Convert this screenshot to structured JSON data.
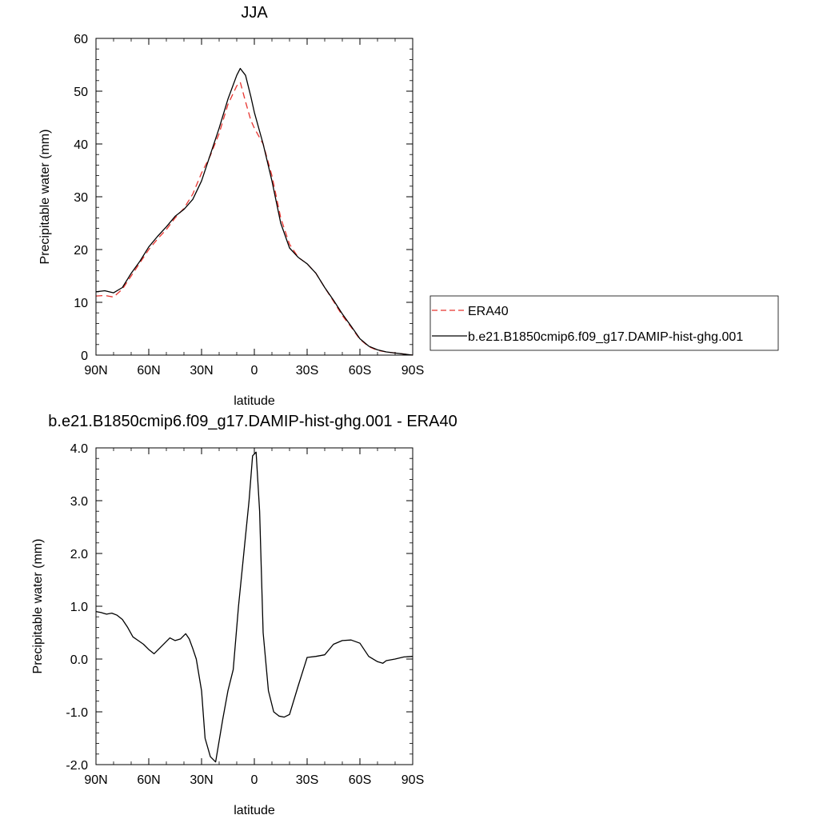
{
  "chart_data": [
    {
      "type": "line",
      "title": "JJA",
      "xlabel": "latitude",
      "ylabel": "Precipitable water (mm)",
      "x_ticklabels": [
        "90N",
        "60N",
        "30N",
        "0",
        "30S",
        "60S",
        "90S"
      ],
      "x_tickvalues": [
        90,
        60,
        30,
        0,
        -30,
        -60,
        -90
      ],
      "xlim": [
        90,
        -90
      ],
      "ylim": [
        0,
        60
      ],
      "y_ticks": [
        0,
        10,
        20,
        30,
        40,
        50,
        60
      ],
      "y_ticklabels": [
        "0",
        "10",
        "20",
        "30",
        "40",
        "50",
        "60"
      ],
      "grid": false,
      "legend_position": "right",
      "x": [
        90,
        85,
        80,
        75,
        70,
        65,
        60,
        55,
        50,
        45,
        40,
        35,
        30,
        25,
        20,
        15,
        10,
        8,
        5,
        2,
        0,
        -5,
        -10,
        -15,
        -20,
        -25,
        -30,
        -35,
        -40,
        -45,
        -50,
        -55,
        -60,
        -65,
        -70,
        -75,
        -80,
        -85,
        -90
      ],
      "series": [
        {
          "name": "ERA40",
          "color": "#e8342f",
          "dash": "dashed",
          "values": [
            11.2,
            11.3,
            11.0,
            12.5,
            15.0,
            17.5,
            20.0,
            22.0,
            23.8,
            26.0,
            27.8,
            30.5,
            34.5,
            37.8,
            42.0,
            47.5,
            51.0,
            51.7,
            48.0,
            44.5,
            43.0,
            40.0,
            34.0,
            26.0,
            21.0,
            18.5,
            17.3,
            15.5,
            12.8,
            10.2,
            7.5,
            5.3,
            3.0,
            1.6,
            0.9,
            0.6,
            0.4,
            0.2,
            0.0
          ]
        },
        {
          "name": "b.e21.B1850cmip6.f09_g17.DAMIP-hist-ghg.001",
          "color": "#000000",
          "dash": "solid",
          "values": [
            12.0,
            12.2,
            11.8,
            12.8,
            15.5,
            17.8,
            20.5,
            22.5,
            24.3,
            26.3,
            27.6,
            29.5,
            33.0,
            38.0,
            43.0,
            48.5,
            53.0,
            54.3,
            53.0,
            49.0,
            46.0,
            40.0,
            33.0,
            25.0,
            20.3,
            18.5,
            17.3,
            15.5,
            12.8,
            10.4,
            7.8,
            5.5,
            3.1,
            1.7,
            1.0,
            0.6,
            0.4,
            0.2,
            0.0
          ]
        }
      ]
    },
    {
      "type": "line",
      "title": "b.e21.B1850cmip6.f09_g17.DAMIP-hist-ghg.001 - ERA40",
      "xlabel": "latitude",
      "ylabel": "Precipitable water (mm)",
      "x_ticklabels": [
        "90N",
        "60N",
        "30N",
        "0",
        "30S",
        "60S",
        "90S"
      ],
      "x_tickvalues": [
        90,
        60,
        30,
        0,
        -30,
        -60,
        -90
      ],
      "xlim": [
        90,
        -90
      ],
      "ylim": [
        -2.0,
        4.0
      ],
      "y_ticks": [
        -2.0,
        -1.0,
        0.0,
        1.0,
        2.0,
        3.0,
        4.0
      ],
      "y_ticklabels": [
        "-2.0",
        "-1.0",
        "0.0",
        "1.0",
        "2.0",
        "3.0",
        "4.0"
      ],
      "grid": false,
      "x": [
        90,
        87,
        84,
        81,
        78,
        75,
        72,
        69,
        66,
        63,
        60,
        57,
        54,
        51,
        48,
        45,
        42,
        39,
        37,
        35,
        33,
        30,
        28,
        25,
        22,
        18,
        15,
        12,
        9,
        6,
        3,
        1,
        -1,
        -3,
        -5,
        -8,
        -11,
        -14,
        -17,
        -20,
        -25,
        -30,
        -35,
        -40,
        -45,
        -50,
        -55,
        -60,
        -65,
        -70,
        -73,
        -75,
        -80,
        -85,
        -90
      ],
      "values": [
        0.9,
        0.88,
        0.85,
        0.87,
        0.83,
        0.75,
        0.6,
        0.42,
        0.35,
        0.28,
        0.18,
        0.1,
        0.2,
        0.3,
        0.4,
        0.35,
        0.38,
        0.48,
        0.38,
        0.2,
        0.0,
        -0.6,
        -1.5,
        -1.85,
        -1.95,
        -1.15,
        -0.6,
        -0.2,
        1.0,
        2.0,
        3.0,
        3.85,
        3.92,
        2.8,
        0.5,
        -0.6,
        -1.0,
        -1.08,
        -1.1,
        -1.05,
        -0.5,
        0.03,
        0.05,
        0.08,
        0.28,
        0.35,
        0.36,
        0.3,
        0.05,
        -0.05,
        -0.08,
        -0.03,
        0.0,
        0.04,
        0.05
      ]
    }
  ]
}
